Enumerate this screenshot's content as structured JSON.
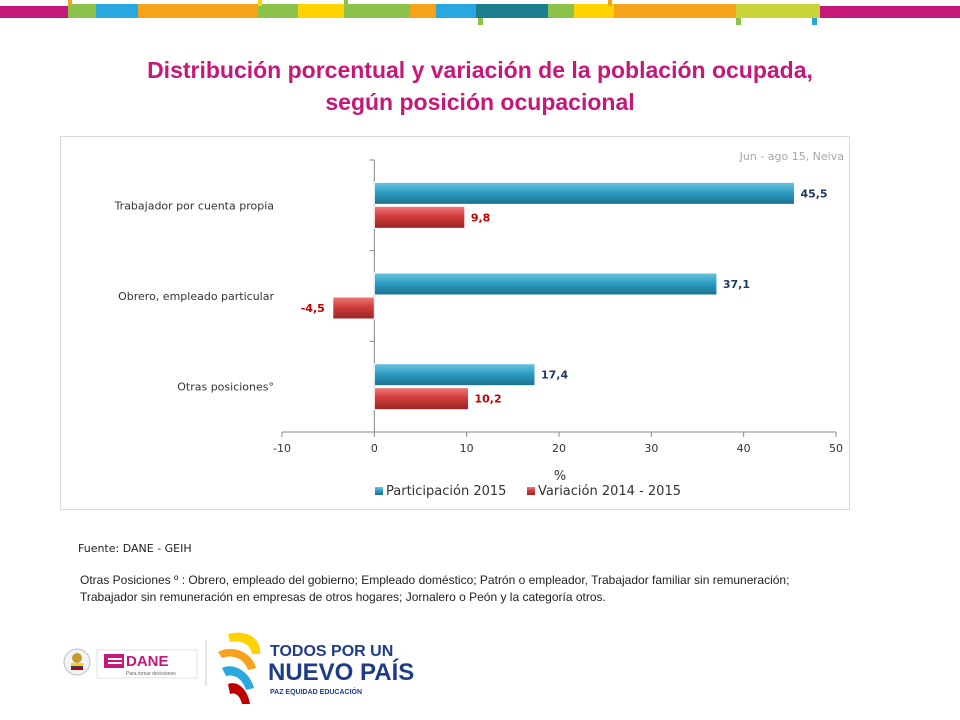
{
  "colors": {
    "title": "#c6177a",
    "series_participacion": "#2e9ec4",
    "series_variacion": "#d33c3c",
    "label_participacion": "#1f3864",
    "label_variacion": "#c00000",
    "topbar": [
      "#c6177a",
      "#8bc34a",
      "#29a8e0",
      "#f7a21b",
      "#ffd200",
      "#1b7f8f"
    ]
  },
  "header": {
    "title_line1": "Distribución porcentual y variación de la población ocupada,",
    "title_line2": "según posición ocupacional"
  },
  "chart_data": {
    "type": "bar",
    "orientation": "horizontal",
    "subtitle": "Jun - ago 15, Neiva",
    "categories": [
      "Trabajador por cuenta propia",
      "Obrero, empleado particular",
      "Otras posiciones°"
    ],
    "series": [
      {
        "name": "Participación 2015",
        "values": [
          45.5,
          37.1,
          17.4
        ],
        "labels": [
          "45,5",
          "37,1",
          "17,4"
        ]
      },
      {
        "name": "Variación 2014 - 2015",
        "values": [
          9.8,
          -4.5,
          10.2
        ],
        "labels": [
          "9,8",
          "-4,5",
          "10,2"
        ]
      }
    ],
    "xlabel": "%",
    "xlim": [
      -10,
      50
    ],
    "xticks": [
      "-10",
      "0",
      "10",
      "20",
      "30",
      "40",
      "50"
    ],
    "grid": false,
    "legend_position": "bottom"
  },
  "footer": {
    "source": "Fuente: DANE - GEIH",
    "note_line1": "Otras Posiciones º :  Obrero, empleado del gobierno; Empleado doméstico; Patrón o empleador, Trabajador familiar sin remuneración;",
    "note_line2": "Trabajador sin remuneración en empresas de otros hogares; Jornalero o Peón  y la categoría otros."
  },
  "logos": {
    "dane": "DANE",
    "dane_tagline": "Para tomar decisiones",
    "gov_line1": "TODOS POR UN",
    "gov_line2": "NUEVO PAÍS",
    "gov_tagline": "PAZ  EQUIDAD  EDUCACIÓN"
  }
}
